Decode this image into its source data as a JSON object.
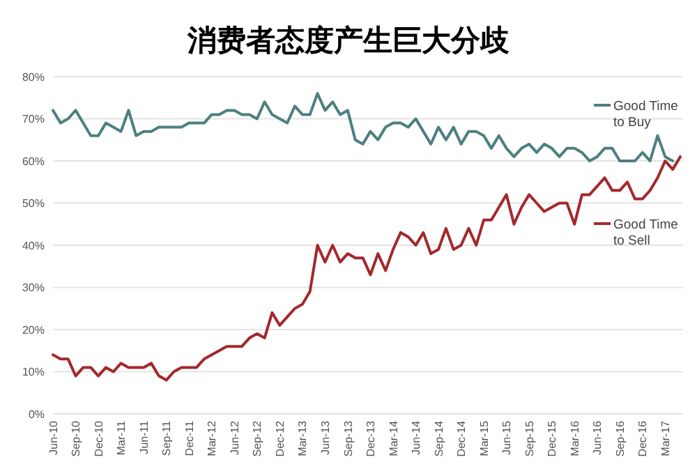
{
  "chart_data": {
    "type": "line",
    "title": "消费者态度产生巨大分歧",
    "categories": [
      "Jun-10",
      null,
      null,
      "Sep-10",
      null,
      null,
      "Dec-10",
      null,
      null,
      "Mar-11",
      null,
      null,
      "Jun-11",
      null,
      null,
      "Sep-11",
      null,
      null,
      "Dec-11",
      null,
      null,
      "Mar-12",
      null,
      null,
      "Jun-12",
      null,
      null,
      "Sep-12",
      null,
      null,
      "Dec-12",
      null,
      null,
      "Mar-13",
      null,
      null,
      "Jun-13",
      null,
      null,
      "Sep-13",
      null,
      null,
      "Dec-13",
      null,
      null,
      "Mar-14",
      null,
      null,
      "Jun-14",
      null,
      null,
      "Sep-14",
      null,
      null,
      "Dec-14",
      null,
      null,
      "Mar-15",
      null,
      null,
      "Jun-15",
      null,
      null,
      "Sep-15",
      null,
      null,
      "Dec-15",
      null,
      null,
      "Mar-16",
      null,
      null,
      "Jun-16",
      null,
      null,
      "Sep-16",
      null,
      null,
      "Dec-16",
      null,
      null,
      "Mar-17",
      null,
      null
    ],
    "series": [
      {
        "name": "Good Time to Buy",
        "color": "#4d7f80",
        "values": [
          72,
          69,
          70,
          72,
          69,
          66,
          66,
          69,
          68,
          67,
          72,
          66,
          67,
          67,
          68,
          68,
          68,
          68,
          69,
          69,
          69,
          71,
          71,
          72,
          72,
          71,
          71,
          70,
          74,
          71,
          70,
          69,
          73,
          71,
          71,
          76,
          72,
          74,
          71,
          72,
          65,
          64,
          67,
          65,
          68,
          69,
          69,
          68,
          70,
          67,
          64,
          68,
          65,
          68,
          64,
          67,
          67,
          66,
          63,
          66,
          63,
          61,
          63,
          64,
          62,
          64,
          63,
          61,
          63,
          63,
          62,
          60,
          61,
          63,
          63,
          60,
          60,
          60,
          62,
          60,
          66,
          61,
          60,
          null
        ]
      },
      {
        "name": "Good Time to Sell",
        "color": "#a3282d",
        "values": [
          14,
          13,
          13,
          9,
          11,
          11,
          9,
          11,
          10,
          12,
          11,
          11,
          11,
          12,
          9,
          8,
          10,
          11,
          11,
          11,
          13,
          14,
          15,
          16,
          16,
          16,
          18,
          19,
          18,
          24,
          21,
          23,
          25,
          26,
          29,
          40,
          36,
          40,
          36,
          38,
          37,
          37,
          33,
          38,
          34,
          39,
          43,
          42,
          40,
          43,
          38,
          39,
          44,
          39,
          40,
          44,
          40,
          46,
          46,
          49,
          52,
          45,
          49,
          52,
          50,
          48,
          49,
          50,
          50,
          45,
          52,
          52,
          54,
          56,
          53,
          53,
          55,
          51,
          51,
          53,
          56,
          60,
          58,
          61
        ]
      }
    ],
    "ylim": [
      0,
      80
    ],
    "yticks": [
      {
        "value": 0,
        "label": "0%"
      },
      {
        "value": 10,
        "label": "10%"
      },
      {
        "value": 20,
        "label": "20%"
      },
      {
        "value": 30,
        "label": "30%"
      },
      {
        "value": 40,
        "label": "40%"
      },
      {
        "value": 50,
        "label": "50%"
      },
      {
        "value": 60,
        "label": "60%"
      },
      {
        "value": 70,
        "label": "70%"
      },
      {
        "value": 80,
        "label": "80%"
      }
    ],
    "grid": "y",
    "legend": "right"
  }
}
